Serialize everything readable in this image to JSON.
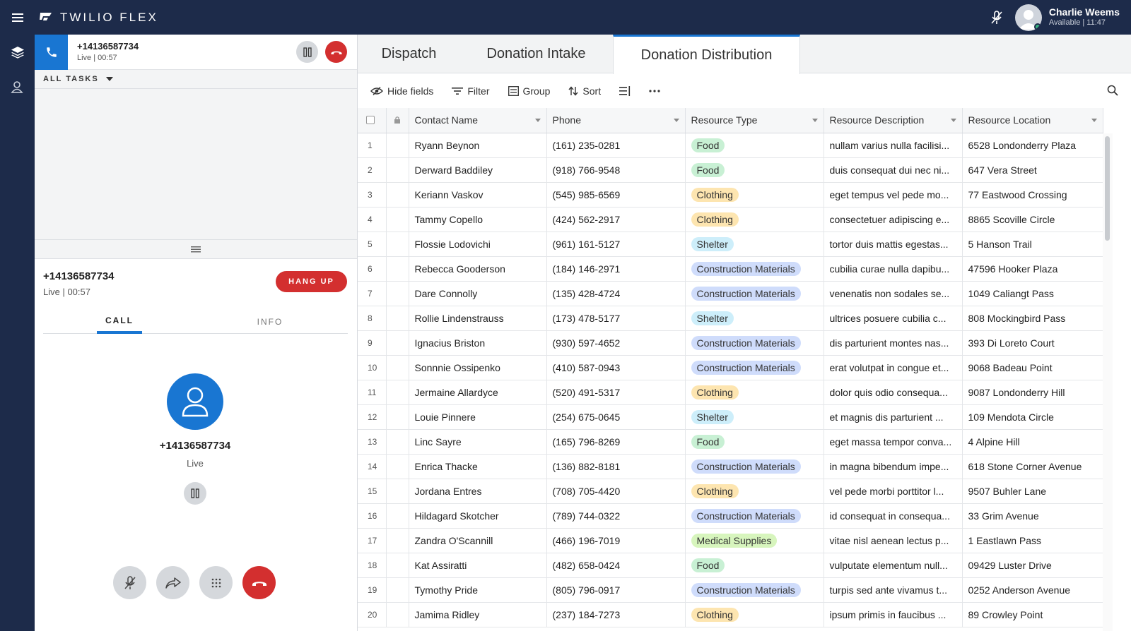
{
  "topbar": {
    "brand": "TWILIO FLEX",
    "user_name": "Charlie Weems",
    "user_status": "Available | 11:47"
  },
  "task_list": {
    "active_task": {
      "number": "+14136587734",
      "status": "Live | 00:57"
    },
    "filter_label": "ALL TASKS"
  },
  "call": {
    "number": "+14136587734",
    "status": "Live | 00:57",
    "hangup_label": "HANG UP",
    "tabs": [
      "CALL",
      "INFO"
    ],
    "caller_number": "+14136587734",
    "caller_status": "Live"
  },
  "main": {
    "tabs": [
      "Dispatch",
      "Donation Intake",
      "Donation Distribution"
    ],
    "active_tab": "Donation Distribution",
    "toolbar": {
      "hide_fields": "Hide fields",
      "filter": "Filter",
      "group": "Group",
      "sort": "Sort"
    },
    "columns": [
      "Contact Name",
      "Phone",
      "Resource Type",
      "Resource Description",
      "Resource Location"
    ],
    "type_colors": {
      "Food": "#c8f0d4",
      "Clothing": "#fde5b0",
      "Shelter": "#cdeefa",
      "Construction Materials": "#cfdcfb",
      "Medical Supplies": "#d7f5bd"
    },
    "rows": [
      {
        "n": "1",
        "name": "Ryann Beynon",
        "phone": "(161) 235-0281",
        "type": "Food",
        "desc": "nullam varius nulla facilisi...",
        "loc": "6528 Londonderry Plaza"
      },
      {
        "n": "2",
        "name": "Derward Baddiley",
        "phone": "(918) 766-9548",
        "type": "Food",
        "desc": "duis consequat dui nec ni...",
        "loc": "647 Vera Street"
      },
      {
        "n": "3",
        "name": "Keriann Vaskov",
        "phone": "(545) 985-6569",
        "type": "Clothing",
        "desc": "eget tempus vel pede mo...",
        "loc": "77 Eastwood Crossing"
      },
      {
        "n": "4",
        "name": "Tammy Copello",
        "phone": "(424) 562-2917",
        "type": "Clothing",
        "desc": "consectetuer adipiscing e...",
        "loc": "8865 Scoville Circle"
      },
      {
        "n": "5",
        "name": "Flossie Lodovichi",
        "phone": "(961) 161-5127",
        "type": "Shelter",
        "desc": "tortor duis mattis egestas...",
        "loc": "5 Hanson Trail"
      },
      {
        "n": "6",
        "name": "Rebecca Gooderson",
        "phone": "(184) 146-2971",
        "type": "Construction Materials",
        "desc": "cubilia curae nulla dapibu...",
        "loc": "47596 Hooker Plaza"
      },
      {
        "n": "7",
        "name": "Dare Connolly",
        "phone": "(135) 428-4724",
        "type": "Construction Materials",
        "desc": "venenatis non sodales se...",
        "loc": "1049 Caliangt Pass"
      },
      {
        "n": "8",
        "name": "Rollie Lindenstrauss",
        "phone": "(173) 478-5177",
        "type": "Shelter",
        "desc": "ultrices posuere cubilia c...",
        "loc": "808 Mockingbird Pass"
      },
      {
        "n": "9",
        "name": "Ignacius Briston",
        "phone": "(930) 597-4652",
        "type": "Construction Materials",
        "desc": "dis parturient montes nas...",
        "loc": "393 Di Loreto Court"
      },
      {
        "n": "10",
        "name": "Sonnnie Ossipenko",
        "phone": "(410) 587-0943",
        "type": "Construction Materials",
        "desc": "erat volutpat in congue et...",
        "loc": "9068 Badeau Point"
      },
      {
        "n": "11",
        "name": "Jermaine Allardyce",
        "phone": "(520) 491-5317",
        "type": "Clothing",
        "desc": "dolor quis odio consequa...",
        "loc": "9087 Londonderry Hill"
      },
      {
        "n": "12",
        "name": "Louie Pinnere",
        "phone": "(254) 675-0645",
        "type": "Shelter",
        "desc": "et magnis dis parturient ...",
        "loc": "109 Mendota Circle"
      },
      {
        "n": "13",
        "name": "Linc Sayre",
        "phone": "(165) 796-8269",
        "type": "Food",
        "desc": "eget massa tempor conva...",
        "loc": "4 Alpine Hill"
      },
      {
        "n": "14",
        "name": "Enrica Thacke",
        "phone": "(136) 882-8181",
        "type": "Construction Materials",
        "desc": "in magna bibendum impe...",
        "loc": "618 Stone Corner Avenue"
      },
      {
        "n": "15",
        "name": "Jordana Entres",
        "phone": "(708) 705-4420",
        "type": "Clothing",
        "desc": "vel pede morbi porttitor l...",
        "loc": "9507 Buhler Lane"
      },
      {
        "n": "16",
        "name": "Hildagard Skotcher",
        "phone": "(789) 744-0322",
        "type": "Construction Materials",
        "desc": "id consequat in consequa...",
        "loc": "33 Grim Avenue"
      },
      {
        "n": "17",
        "name": "Zandra O'Scannill",
        "phone": "(466) 196-7019",
        "type": "Medical Supplies",
        "desc": "vitae nisl aenean lectus p...",
        "loc": "1 Eastlawn Pass"
      },
      {
        "n": "18",
        "name": "Kat Assiratti",
        "phone": "(482) 658-0424",
        "type": "Food",
        "desc": "vulputate elementum null...",
        "loc": "09429 Luster Drive"
      },
      {
        "n": "19",
        "name": "Tymothy Pride",
        "phone": "(805) 796-0917",
        "type": "Construction Materials",
        "desc": "turpis sed ante vivamus t...",
        "loc": "0252 Anderson Avenue"
      },
      {
        "n": "20",
        "name": "Jamima Ridley",
        "phone": "(237) 184-7273",
        "type": "Clothing",
        "desc": "ipsum primis in faucibus ...",
        "loc": "89 Crowley Point"
      }
    ]
  }
}
